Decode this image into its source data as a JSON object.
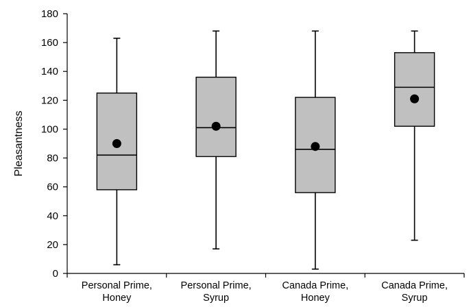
{
  "chart_data": {
    "type": "box",
    "title": "",
    "xlabel": "",
    "ylabel": "Pleasantness",
    "ylim": [
      0,
      180
    ],
    "yticks": [
      0,
      20,
      40,
      60,
      80,
      100,
      120,
      140,
      160,
      180
    ],
    "grid": false,
    "categories": [
      [
        "Personal Prime,",
        "Honey"
      ],
      [
        "Personal Prime,",
        "Syrup"
      ],
      [
        "Canada Prime,",
        "Honey"
      ],
      [
        "Canada Prime,",
        "Syrup"
      ]
    ],
    "boxes": [
      {
        "min": 6,
        "q1": 58,
        "median": 82,
        "q3": 125,
        "max": 163,
        "mean": 90
      },
      {
        "min": 17,
        "q1": 81,
        "median": 101,
        "q3": 136,
        "max": 168,
        "mean": 102
      },
      {
        "min": 3,
        "q1": 56,
        "median": 86,
        "q3": 122,
        "max": 168,
        "mean": 88
      },
      {
        "min": 23,
        "q1": 102,
        "median": 129,
        "q3": 153,
        "max": 168,
        "mean": 121
      }
    ],
    "colors": {
      "box_fill": "#c0c0c0",
      "stroke": "#000000",
      "mean_marker": "#000000"
    }
  }
}
